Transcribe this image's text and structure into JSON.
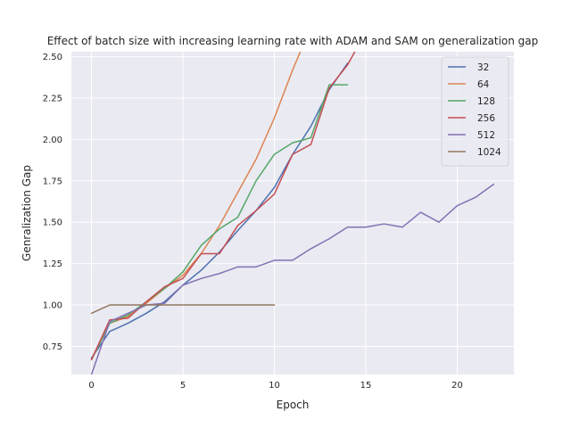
{
  "chart_data": {
    "type": "line",
    "title": "Effect of batch size with increasing learning rate with ADAM and SAM on generalization gap",
    "xlabel": "Epoch",
    "ylabel": "Genralization Gap",
    "xlim": [
      -1.1,
      23.1
    ],
    "ylim": [
      0.58,
      2.53
    ],
    "xticks": [
      0,
      5,
      10,
      15,
      20
    ],
    "yticks": [
      0.75,
      1.0,
      1.25,
      1.5,
      1.75,
      2.0,
      2.25,
      2.5
    ],
    "ytick_labels": [
      "0.75",
      "1.00",
      "1.25",
      "1.50",
      "1.75",
      "2.00",
      "2.25",
      "2.50"
    ],
    "grid": true,
    "legend_position": "top-right",
    "series": [
      {
        "name": "32",
        "color": "#4c72b0",
        "x": [
          0,
          1,
          2,
          3,
          4,
          5,
          6,
          7,
          8,
          9,
          10,
          11,
          12,
          13,
          14
        ],
        "y": [
          0.68,
          0.84,
          0.89,
          0.95,
          1.02,
          1.12,
          1.21,
          1.32,
          1.45,
          1.57,
          1.71,
          1.91,
          2.08,
          2.3,
          2.46
        ]
      },
      {
        "name": "64",
        "color": "#dd8452",
        "x": [
          0,
          1,
          2,
          3,
          4,
          5,
          6,
          7,
          8,
          9,
          10,
          11,
          11.5
        ],
        "y": [
          0.67,
          0.89,
          0.93,
          1.01,
          1.1,
          1.18,
          1.31,
          1.48,
          1.68,
          1.88,
          2.13,
          2.42,
          2.55
        ]
      },
      {
        "name": "128",
        "color": "#55a868",
        "x": [
          0,
          1,
          2,
          3,
          4,
          5,
          6,
          7,
          8,
          9,
          10,
          11,
          12,
          13,
          14
        ],
        "y": [
          0.67,
          0.89,
          0.94,
          1.02,
          1.1,
          1.2,
          1.36,
          1.46,
          1.53,
          1.75,
          1.91,
          1.98,
          2.01,
          2.33,
          2.33
        ]
      },
      {
        "name": "256",
        "color": "#c44e52",
        "x": [
          0,
          1,
          2,
          3,
          4,
          5,
          6,
          7,
          8,
          9,
          10,
          11,
          12,
          13,
          14,
          14.5
        ],
        "y": [
          0.67,
          0.91,
          0.92,
          1.02,
          1.11,
          1.16,
          1.31,
          1.31,
          1.48,
          1.57,
          1.67,
          1.91,
          1.97,
          2.31,
          2.45,
          2.55
        ]
      },
      {
        "name": "512",
        "color": "#8172b3",
        "x": [
          0,
          1,
          2,
          3,
          4,
          5,
          6,
          7,
          8,
          9,
          10,
          11,
          12,
          13,
          14,
          15,
          16,
          17,
          18,
          19,
          20,
          21,
          22
        ],
        "y": [
          0.58,
          0.9,
          0.95,
          1.0,
          1.01,
          1.12,
          1.16,
          1.19,
          1.23,
          1.23,
          1.27,
          1.27,
          1.34,
          1.4,
          1.47,
          1.47,
          1.49,
          1.47,
          1.56,
          1.5,
          1.6,
          1.65,
          1.73
        ]
      },
      {
        "name": "1024",
        "color": "#937860",
        "x": [
          0,
          1,
          2,
          3,
          4,
          5,
          6,
          7,
          8,
          9,
          10
        ],
        "y": [
          0.95,
          1.0,
          1.0,
          1.0,
          1.0,
          1.0,
          1.0,
          1.0,
          1.0,
          1.0,
          1.0
        ]
      }
    ]
  }
}
